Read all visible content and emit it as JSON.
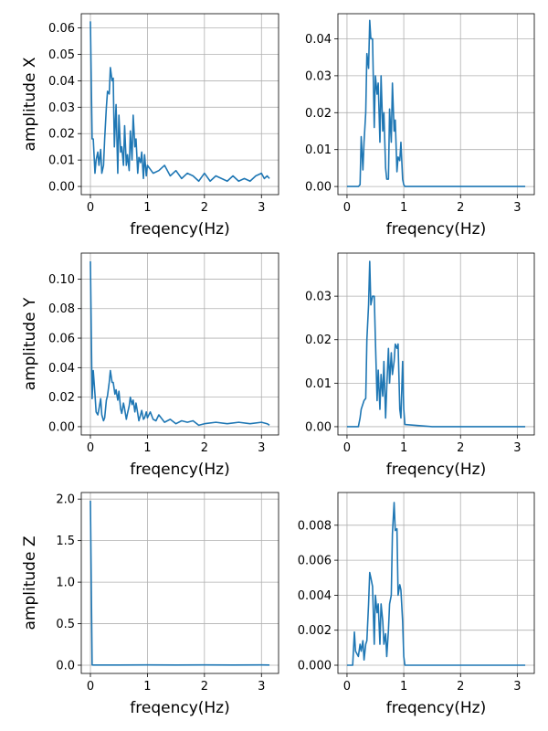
{
  "figure": {
    "line_color": "#1f77b4",
    "grid_color": "#b0b0b0",
    "grid": true
  },
  "chart_data": [
    {
      "type": "line",
      "xlabel": "freqency(Hz)",
      "ylabel": "amplitude X",
      "xlim": [
        -0.16,
        3.3
      ],
      "ylim": [
        -0.0031,
        0.0654
      ],
      "xticks": [
        0,
        1,
        2,
        3
      ],
      "yticks": [
        0.0,
        0.01,
        0.02,
        0.03,
        0.04,
        0.05,
        0.06
      ],
      "ytick_labels": [
        "0.00",
        "0.01",
        "0.02",
        "0.03",
        "0.04",
        "0.05",
        "0.06"
      ],
      "series": [
        {
          "x": [
            0,
            0.03,
            0.05,
            0.08,
            0.1,
            0.13,
            0.15,
            0.18,
            0.2,
            0.23,
            0.25,
            0.28,
            0.3,
            0.33,
            0.35,
            0.38,
            0.4,
            0.42,
            0.45,
            0.48,
            0.5,
            0.53,
            0.55,
            0.58,
            0.6,
            0.63,
            0.65,
            0.68,
            0.7,
            0.73,
            0.75,
            0.78,
            0.8,
            0.83,
            0.85,
            0.88,
            0.9,
            0.93,
            0.95,
            0.98,
            1.0,
            1.1,
            1.2,
            1.3,
            1.4,
            1.5,
            1.6,
            1.7,
            1.8,
            1.9,
            2.0,
            2.1,
            2.2,
            2.3,
            2.4,
            2.5,
            2.6,
            2.7,
            2.8,
            2.9,
            3.0,
            3.05,
            3.1,
            3.14
          ],
          "values": [
            0.0625,
            0.018,
            0.018,
            0.005,
            0.01,
            0.013,
            0.008,
            0.014,
            0.005,
            0.008,
            0.018,
            0.03,
            0.036,
            0.035,
            0.045,
            0.04,
            0.041,
            0.015,
            0.031,
            0.005,
            0.027,
            0.013,
            0.015,
            0.008,
            0.023,
            0.008,
            0.012,
            0.006,
            0.021,
            0.01,
            0.027,
            0.015,
            0.018,
            0.005,
            0.011,
            0.009,
            0.013,
            0.003,
            0.012,
            0.004,
            0.008,
            0.005,
            0.006,
            0.008,
            0.004,
            0.006,
            0.003,
            0.005,
            0.004,
            0.002,
            0.005,
            0.002,
            0.004,
            0.003,
            0.002,
            0.004,
            0.002,
            0.003,
            0.002,
            0.004,
            0.005,
            0.003,
            0.004,
            0.003
          ]
        }
      ]
    },
    {
      "type": "line",
      "xlabel": "freqency(Hz)",
      "ylabel": "",
      "xlim": [
        -0.16,
        3.3
      ],
      "ylim": [
        -0.0022,
        0.0468
      ],
      "xticks": [
        0,
        1,
        2,
        3
      ],
      "yticks": [
        0.0,
        0.01,
        0.02,
        0.03,
        0.04
      ],
      "ytick_labels": [
        "0.00",
        "0.01",
        "0.02",
        "0.03",
        "0.04"
      ],
      "series": [
        {
          "x": [
            0,
            0.1,
            0.2,
            0.23,
            0.25,
            0.28,
            0.3,
            0.33,
            0.35,
            0.38,
            0.4,
            0.42,
            0.45,
            0.48,
            0.5,
            0.53,
            0.55,
            0.58,
            0.6,
            0.63,
            0.65,
            0.68,
            0.7,
            0.73,
            0.75,
            0.78,
            0.8,
            0.83,
            0.85,
            0.88,
            0.9,
            0.93,
            0.95,
            0.98,
            1.0,
            1.02,
            1.5,
            2.0,
            2.5,
            3.0,
            3.14
          ],
          "values": [
            0,
            0,
            0,
            0.0005,
            0.0135,
            0.0045,
            0.012,
            0.02,
            0.036,
            0.032,
            0.045,
            0.04,
            0.04,
            0.016,
            0.03,
            0.025,
            0.028,
            0.012,
            0.03,
            0.015,
            0.02,
            0.005,
            0.002,
            0.002,
            0.021,
            0.012,
            0.028,
            0.015,
            0.018,
            0.004,
            0.008,
            0.007,
            0.012,
            0.002,
            0.0005,
            0,
            0,
            0,
            0,
            0,
            0
          ]
        }
      ]
    },
    {
      "type": "line",
      "xlabel": "freqency(Hz)",
      "ylabel": "amplitude Y",
      "xlim": [
        -0.16,
        3.3
      ],
      "ylim": [
        -0.0056,
        0.1176
      ],
      "xticks": [
        0,
        1,
        2,
        3
      ],
      "yticks": [
        0.0,
        0.02,
        0.04,
        0.06,
        0.08,
        0.1
      ],
      "ytick_labels": [
        "0.00",
        "0.02",
        "0.04",
        "0.06",
        "0.08",
        "0.10"
      ],
      "series": [
        {
          "x": [
            0,
            0.03,
            0.05,
            0.08,
            0.1,
            0.13,
            0.15,
            0.18,
            0.2,
            0.23,
            0.25,
            0.28,
            0.3,
            0.33,
            0.35,
            0.38,
            0.4,
            0.43,
            0.45,
            0.48,
            0.5,
            0.53,
            0.55,
            0.58,
            0.6,
            0.63,
            0.65,
            0.68,
            0.7,
            0.73,
            0.75,
            0.78,
            0.8,
            0.83,
            0.85,
            0.88,
            0.9,
            0.93,
            0.95,
            0.98,
            1.0,
            1.05,
            1.1,
            1.15,
            1.2,
            1.3,
            1.4,
            1.5,
            1.6,
            1.7,
            1.8,
            1.9,
            2.0,
            2.2,
            2.4,
            2.6,
            2.8,
            3.0,
            3.1,
            3.14
          ],
          "values": [
            0.112,
            0.019,
            0.038,
            0.022,
            0.01,
            0.008,
            0.012,
            0.019,
            0.008,
            0.004,
            0.006,
            0.018,
            0.021,
            0.03,
            0.038,
            0.03,
            0.03,
            0.022,
            0.025,
            0.018,
            0.024,
            0.012,
            0.009,
            0.016,
            0.012,
            0.005,
            0.009,
            0.014,
            0.02,
            0.015,
            0.018,
            0.01,
            0.016,
            0.009,
            0.004,
            0.008,
            0.011,
            0.005,
            0.006,
            0.01,
            0.006,
            0.01,
            0.005,
            0.004,
            0.008,
            0.003,
            0.005,
            0.002,
            0.004,
            0.003,
            0.004,
            0.001,
            0.002,
            0.003,
            0.002,
            0.003,
            0.002,
            0.003,
            0.002,
            0.001
          ]
        }
      ]
    },
    {
      "type": "line",
      "xlabel": "freqency(Hz)",
      "ylabel": "",
      "xlim": [
        -0.16,
        3.3
      ],
      "ylim": [
        -0.0019,
        0.0399
      ],
      "xticks": [
        0,
        1,
        2,
        3
      ],
      "yticks": [
        0.0,
        0.01,
        0.02,
        0.03
      ],
      "ytick_labels": [
        "0.00",
        "0.01",
        "0.02",
        "0.03"
      ],
      "series": [
        {
          "x": [
            0,
            0.1,
            0.2,
            0.23,
            0.25,
            0.3,
            0.33,
            0.35,
            0.38,
            0.4,
            0.42,
            0.45,
            0.48,
            0.5,
            0.53,
            0.55,
            0.58,
            0.6,
            0.63,
            0.65,
            0.68,
            0.7,
            0.73,
            0.75,
            0.78,
            0.8,
            0.83,
            0.85,
            0.88,
            0.9,
            0.93,
            0.95,
            0.98,
            1.0,
            1.02,
            1.5,
            2.0,
            2.5,
            3.0,
            3.14
          ],
          "values": [
            0,
            0,
            0,
            0.002,
            0.004,
            0.006,
            0.0065,
            0.02,
            0.028,
            0.038,
            0.028,
            0.03,
            0.03,
            0.02,
            0.006,
            0.013,
            0.004,
            0.012,
            0.007,
            0.015,
            0.002,
            0.009,
            0.018,
            0.01,
            0.017,
            0.012,
            0.015,
            0.019,
            0.018,
            0.019,
            0.004,
            0.002,
            0.015,
            0.004,
            0.0005,
            0,
            0,
            0,
            0,
            0
          ]
        }
      ]
    },
    {
      "type": "line",
      "xlabel": "freqency(Hz)",
      "ylabel": "amplitude Z",
      "xlim": [
        -0.16,
        3.3
      ],
      "ylim": [
        -0.099,
        2.079
      ],
      "xticks": [
        0,
        1,
        2,
        3
      ],
      "yticks": [
        0.0,
        0.5,
        1.0,
        1.5,
        2.0
      ],
      "ytick_labels": [
        "0.0",
        "0.5",
        "1.0",
        "1.5",
        "2.0"
      ],
      "series": [
        {
          "x": [
            0,
            0.03,
            0.05,
            0.5,
            1.0,
            1.5,
            2.0,
            2.5,
            3.0,
            3.14
          ],
          "values": [
            1.98,
            0.003,
            0.002,
            0.002,
            0.004,
            0.002,
            0.003,
            0.002,
            0.003,
            0.002
          ]
        }
      ]
    },
    {
      "type": "line",
      "xlabel": "freqency(Hz)",
      "ylabel": "",
      "xlim": [
        -0.16,
        3.3
      ],
      "ylim": [
        -0.00047,
        0.00987
      ],
      "xticks": [
        0,
        1,
        2,
        3
      ],
      "yticks": [
        0.0,
        0.002,
        0.004,
        0.006,
        0.008
      ],
      "ytick_labels": [
        "0.000",
        "0.002",
        "0.004",
        "0.006",
        "0.008"
      ],
      "series": [
        {
          "x": [
            0,
            0.05,
            0.1,
            0.13,
            0.15,
            0.2,
            0.23,
            0.25,
            0.28,
            0.3,
            0.33,
            0.35,
            0.38,
            0.4,
            0.42,
            0.45,
            0.48,
            0.5,
            0.53,
            0.55,
            0.58,
            0.6,
            0.63,
            0.65,
            0.68,
            0.7,
            0.73,
            0.75,
            0.78,
            0.8,
            0.83,
            0.85,
            0.88,
            0.9,
            0.93,
            0.95,
            0.98,
            1.0,
            1.02,
            1.5,
            2.0,
            2.5,
            3.0,
            3.14
          ],
          "values": [
            0,
            0,
            0,
            0.0019,
            0.0008,
            0.0005,
            0.0012,
            0.0008,
            0.0014,
            0.0003,
            0.0012,
            0.0014,
            0.0035,
            0.0053,
            0.005,
            0.0045,
            0.0012,
            0.004,
            0.003,
            0.0035,
            0.0012,
            0.0035,
            0.0025,
            0.0012,
            0.0018,
            0.0005,
            0.002,
            0.0035,
            0.004,
            0.0075,
            0.0093,
            0.0077,
            0.0078,
            0.004,
            0.0046,
            0.0043,
            0.0025,
            0.0005,
            0,
            0,
            0,
            0,
            0,
            0
          ]
        }
      ]
    }
  ]
}
